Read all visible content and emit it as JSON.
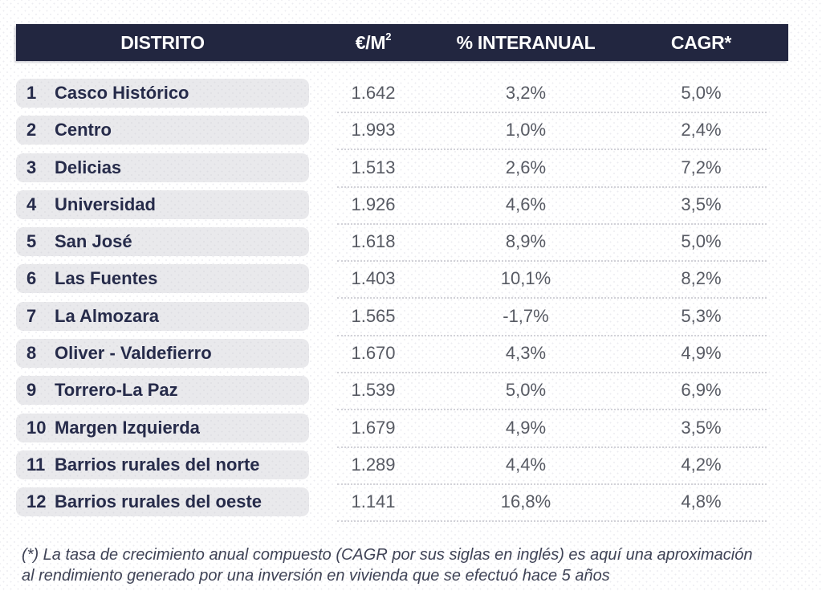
{
  "table": {
    "header": {
      "distrito": "DISTRITO",
      "eur_m2_base": "€/M",
      "eur_m2_sup": "2",
      "interanual": "% INTERANUAL",
      "cagr": "CAGR*"
    },
    "rows": [
      {
        "rank": "1",
        "district": "Casco Histórico",
        "eur_m2": "1.642",
        "yoy": "3,2%",
        "cagr": "5,0%"
      },
      {
        "rank": "2",
        "district": "Centro",
        "eur_m2": "1.993",
        "yoy": "1,0%",
        "cagr": "2,4%"
      },
      {
        "rank": "3",
        "district": "Delicias",
        "eur_m2": "1.513",
        "yoy": "2,6%",
        "cagr": "7,2%"
      },
      {
        "rank": "4",
        "district": "Universidad",
        "eur_m2": "1.926",
        "yoy": "4,6%",
        "cagr": "3,5%"
      },
      {
        "rank": "5",
        "district": "San José",
        "eur_m2": "1.618",
        "yoy": "8,9%",
        "cagr": "5,0%"
      },
      {
        "rank": "6",
        "district": "Las Fuentes",
        "eur_m2": "1.403",
        "yoy": "10,1%",
        "cagr": "8,2%"
      },
      {
        "rank": "7",
        "district": "La Almozara",
        "eur_m2": "1.565",
        "yoy": "-1,7%",
        "cagr": "5,3%"
      },
      {
        "rank": "8",
        "district": "Oliver - Valdefierro",
        "eur_m2": "1.670",
        "yoy": "4,3%",
        "cagr": "4,9%"
      },
      {
        "rank": "9",
        "district": "Torrero-La Paz",
        "eur_m2": "1.539",
        "yoy": "5,0%",
        "cagr": "6,9%"
      },
      {
        "rank": "10",
        "district": "Margen Izquierda",
        "eur_m2": "1.679",
        "yoy": "4,9%",
        "cagr": "3,5%"
      },
      {
        "rank": "11",
        "district": "Barrios rurales del norte",
        "eur_m2": "1.289",
        "yoy": "4,4%",
        "cagr": "4,2%"
      },
      {
        "rank": "12",
        "district": "Barrios rurales del oeste",
        "eur_m2": "1.141",
        "yoy": "16,8%",
        "cagr": "4,8%"
      }
    ]
  },
  "footnote": {
    "line1": "(*) La tasa de crecimiento anual compuesto (CAGR por sus siglas en inglés) es aquí una aproximación",
    "line2": "al rendimiento generado por una inversión en vivienda que se efectuó hace 5 años"
  },
  "colors": {
    "header_bg": "#222640",
    "header_text": "#ffffff",
    "pill_bg": "#e9e9ec",
    "district_text": "#262b4a",
    "value_text": "#575a63",
    "separator": "#d2d2d8",
    "footnote_text": "#3f4356"
  },
  "chart_data": {
    "type": "table",
    "title": "",
    "columns": [
      "DISTRITO",
      "€/M2",
      "% INTERANUAL",
      "CAGR*"
    ],
    "rows": [
      [
        "1",
        "Casco Histórico",
        "1.642",
        "3,2%",
        "5,0%"
      ],
      [
        "2",
        "Centro",
        "1.993",
        "1,0%",
        "2,4%"
      ],
      [
        "3",
        "Delicias",
        "1.513",
        "2,6%",
        "7,2%"
      ],
      [
        "4",
        "Universidad",
        "1.926",
        "4,6%",
        "3,5%"
      ],
      [
        "5",
        "San José",
        "1.618",
        "8,9%",
        "5,0%"
      ],
      [
        "6",
        "Las Fuentes",
        "1.403",
        "10,1%",
        "8,2%"
      ],
      [
        "7",
        "La Almozara",
        "1.565",
        "-1,7%",
        "5,3%"
      ],
      [
        "8",
        "Oliver - Valdefierro",
        "1.670",
        "4,3%",
        "4,9%"
      ],
      [
        "9",
        "Torrero-La Paz",
        "1.539",
        "5,0%",
        "6,9%"
      ],
      [
        "10",
        "Margen Izquierda",
        "1.679",
        "4,9%",
        "3,5%"
      ],
      [
        "11",
        "Barrios rurales del norte",
        "1.289",
        "4,4%",
        "4,2%"
      ],
      [
        "12",
        "Barrios rurales del oeste",
        "1.141",
        "16,8%",
        "4,8%"
      ]
    ],
    "footnote": "(*) La tasa de crecimiento anual compuesto (CAGR por sus siglas en inglés) es aquí una aproximación al rendimiento generado por una inversión en vivienda que se efectuó hace 5 años"
  }
}
